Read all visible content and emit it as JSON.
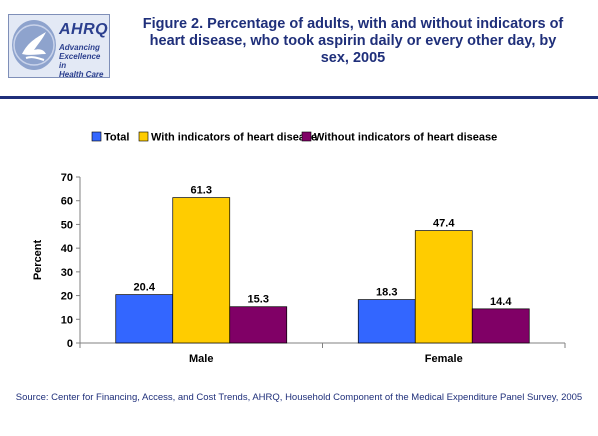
{
  "header": {
    "title": "Figure 2. Percentage of adults, with and without indicators of heart disease, who took aspirin daily or every other day, by sex, 2005",
    "logo": {
      "wordmark": "AHRQ",
      "tagline": [
        "Advancing",
        "Excellence in",
        "Health Care"
      ],
      "seal_icon": "hhs-eagle-seal-icon"
    }
  },
  "footer": {
    "source": "Source: Center for Financing, Access, and Cost Trends, AHRQ, Household Component of the Medical Expenditure Panel Survey, 2005"
  },
  "colors": {
    "title": "#1f2f7a",
    "rule": "#1f2f7a",
    "series": [
      "#3366ff",
      "#ffcc00",
      "#800066"
    ]
  },
  "chart_data": {
    "type": "bar",
    "categories": [
      "Male",
      "Female"
    ],
    "series": [
      {
        "name": "Total",
        "values": [
          20.4,
          18.3
        ]
      },
      {
        "name": "With indicators of heart disease",
        "values": [
          61.3,
          47.4
        ]
      },
      {
        "name": "Without indicators of heart disease",
        "values": [
          15.3,
          14.4
        ]
      }
    ],
    "ylabel": "Percent",
    "xlabel": "",
    "ylim": [
      0,
      70
    ],
    "yticks": [
      0,
      10,
      20,
      30,
      40,
      50,
      60,
      70
    ],
    "legend_position": "top",
    "grid": false,
    "data_labels": true
  }
}
